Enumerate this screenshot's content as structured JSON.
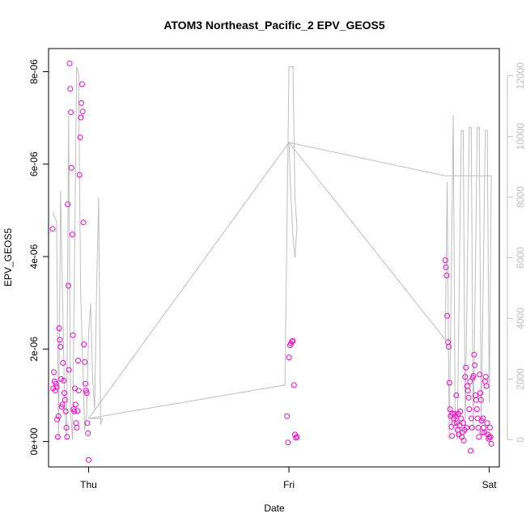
{
  "chart_data": {
    "type": "scatter",
    "title": "ATOM3 Northeast_Pacific_2 EPV_GEOS5",
    "xlabel": "Date",
    "ylabel": "EPV_GEOS5",
    "x_ticks": [
      "Thu",
      "Fri",
      "Sat"
    ],
    "y_ticks": [
      "0e+00",
      "2e-06",
      "4e-06",
      "6e-06",
      "8e-06"
    ],
    "y2_ticks": [
      "0",
      "2000",
      "4000",
      "6000",
      "8000",
      "10000",
      "12000"
    ],
    "xlim_days": [
      -0.2,
      2.05
    ],
    "ylim": [
      -5.5e-07,
      8.5e-06
    ],
    "y2lim": [
      -900,
      12900
    ],
    "grid": false,
    "point_color": "#ff00cc",
    "line_color": "#bebebe",
    "series": [
      {
        "kind": "points",
        "groups": [
          {
            "x_range": [
              -0.18,
              0.0
            ],
            "values": [
              4.6e-06,
              1.15e-06,
              1.5e-06,
              1.3e-06,
              1.1e-06,
              1.25e-06,
              1.18e-06,
              4.8e-07,
              1e-07,
              5.5e-07,
              2.45e-06,
              2.2e-06,
              2.05e-06,
              1.35e-06,
              7.5e-07,
              8e-07,
              1.7e-06,
              1.32e-06,
              1.05e-06,
              9e-07,
              6.5e-07,
              3e-07,
              1e-07,
              5.13e-06,
              3.37e-06,
              1.55e-06,
              8.18e-06,
              7.63e-06,
              7.12e-06,
              5.92e-06,
              4.48e-06,
              2.3e-06,
              7e-07,
              6.5e-07,
              1.15e-06,
              8e-07,
              4e-07,
              3e-07,
              6.6e-07,
              1.75e-06,
              1.1e-06,
              5.77e-06,
              6.58e-06,
              7.01e-06,
              7.32e-06,
              7.73e-06,
              7.14e-06,
              4.74e-06,
              2.1e-06,
              1.72e-06,
              1.25e-06,
              1.1e-06,
              1.05e-06,
              4e-07,
              1.8e-07,
              -4e-07
            ]
          },
          {
            "x_range": [
              0.99,
              1.04
            ],
            "values": [
              5.5e-07,
              -2e-08,
              1.82e-06,
              2.08e-06,
              2.12e-06,
              2.16e-06,
              2.18e-06,
              1.22e-06,
              1.5e-07,
              8e-08,
              1e-07
            ]
          },
          {
            "x_range": [
              1.78,
              2.01
            ],
            "values": [
              3.92e-06,
              3.77e-06,
              3.59e-06,
              2.72e-06,
              2.15e-06,
              2.05e-06,
              1.27e-06,
              7e-07,
              5.5e-07,
              3.2e-07,
              1.2e-07,
              6e-07,
              5e-07,
              4e-07,
              6e-07,
              5.5e-07,
              1e-06,
              4e-07,
              2.5e-07,
              6e-07,
              1.5e-07,
              3.5e-07,
              6.5e-07,
              5e-07,
              1e-07,
              2e-07,
              4e-07,
              2e-08,
              2.5e-07,
              1.4e-06,
              1.6e-06,
              3e-07,
              1.2e-06,
              1.1e-06,
              9.5e-07,
              7e-07,
              1.3e-06,
              -2e-07,
              5e-07,
              3e-07,
              1.38e-06,
              1.42e-06,
              1.88e-06,
              1.65e-06,
              1e-06,
              9e-07,
              7e-07,
              5e-07,
              3e-07,
              1e-07,
              1.45e-06,
              1.05e-06,
              9e-07,
              4.5e-07,
              2e-07,
              5e-07,
              3e-07,
              2e-07,
              1.3e-06,
              1.4e-06,
              1.2e-06,
              4e-07,
              1.5e-07,
              6e-08,
              1e-07,
              3e-07,
              1e-07,
              -5e-08
            ]
          }
        ]
      },
      {
        "kind": "line",
        "axis": "right",
        "name": "",
        "points_x": [
          -0.18,
          -0.16,
          -0.15,
          -0.14,
          -0.12,
          -0.11,
          -0.1,
          -0.09,
          -0.08,
          -0.06,
          -0.05,
          -0.04,
          -0.02,
          -0.01,
          0.0,
          0.01,
          0.02,
          0.03,
          0.04,
          0.05,
          0.06,
          0.07,
          0.0,
          0.98,
          1.0,
          1.02,
          1.03,
          1.04,
          1.03,
          1.02,
          1.01,
          1.0,
          1.78,
          1.79,
          1.8,
          1.82,
          1.83,
          1.84,
          1.86,
          1.87,
          1.88,
          1.9,
          1.91,
          1.92,
          1.94,
          1.95,
          1.96,
          1.98,
          1.99,
          2.0,
          2.01,
          2.0,
          1.78,
          1.0,
          0.0
        ],
        "points_y": [
          7500,
          7200,
          0,
          8200,
          1200,
          0,
          10700,
          900,
          0,
          12300,
          12100,
          5000,
          300,
          800,
          3500,
          4500,
          2000,
          1000,
          5000,
          8000,
          500,
          700,
          700,
          1800,
          12300,
          12300,
          8000,
          7000,
          6000,
          6700,
          8000,
          9800,
          3300,
          8500,
          0,
          10700,
          500,
          0,
          10200,
          10200,
          400,
          10300,
          10300,
          300,
          10300,
          10300,
          500,
          10200,
          10200,
          1200,
          8700,
          8700,
          8700,
          9800,
          700
        ]
      }
    ]
  }
}
